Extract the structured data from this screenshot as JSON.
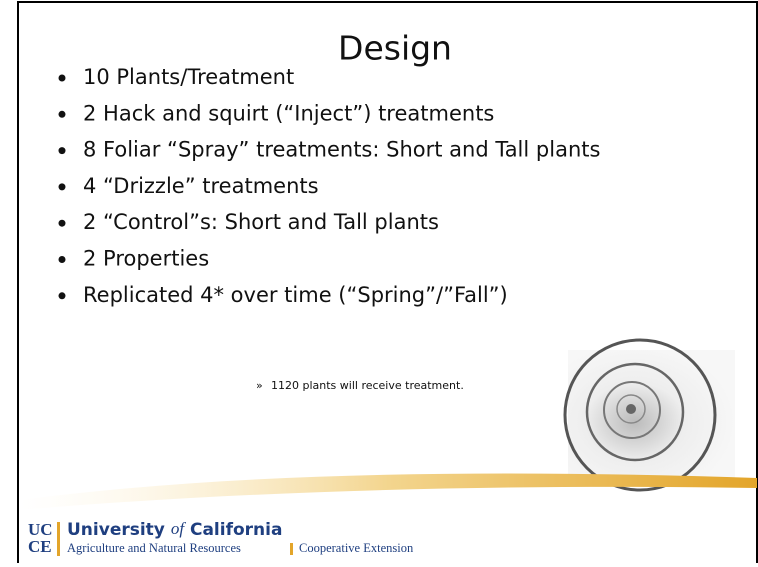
{
  "slide": {
    "title": "Design",
    "bullets": [
      "10 Plants/Treatment",
      "2 Hack and squirt (“Inject”) treatments",
      "8 Foliar “Spray” treatments: Short and Tall plants",
      "4 “Drizzle” treatments",
      "2 “Control”s: Short and Tall plants",
      "2 Properties",
      "Replicated 4* over time (“Spring”/”Fall”)"
    ],
    "sub_bullet_marker": "»",
    "sub_bullet": "1120 plants will receive treatment.",
    "footer": {
      "logo_top": "UC",
      "logo_bottom": "CE",
      "university_pre": "University",
      "university_of": "of",
      "university_post": "California",
      "division": "Agriculture and Natural Resources",
      "extension": "Cooperative Extension"
    }
  }
}
